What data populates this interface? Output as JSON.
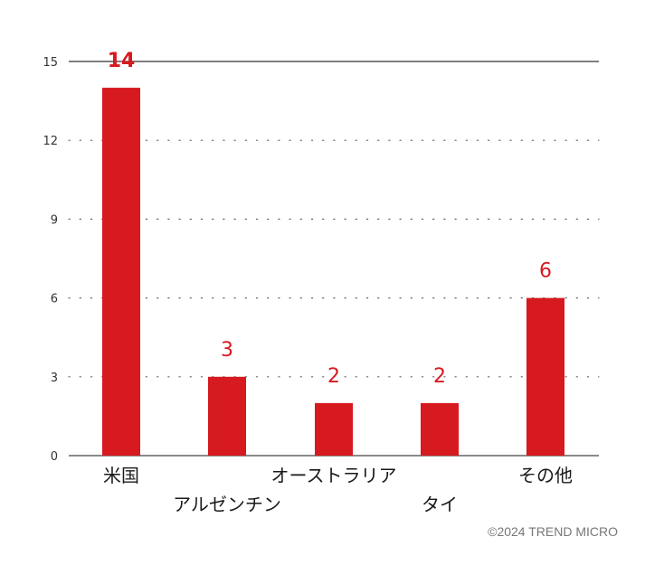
{
  "chart_data": {
    "type": "bar",
    "categories": [
      "米国",
      "アルゼンチン",
      "オーストラリア",
      "タイ",
      "その他"
    ],
    "values": [
      14,
      3,
      2,
      2,
      6
    ],
    "value_labels": [
      "14",
      "3",
      "2",
      "2",
      "6"
    ],
    "yticks": [
      0,
      3,
      6,
      9,
      12,
      15
    ],
    "ylim": [
      0,
      15
    ],
    "grid": "dotted",
    "bar_color": "#d71920",
    "value_label_color": "#d71920",
    "title": "",
    "xlabel": "",
    "ylabel": ""
  },
  "footer": {
    "credit": "©2024 TREND MICRO"
  }
}
